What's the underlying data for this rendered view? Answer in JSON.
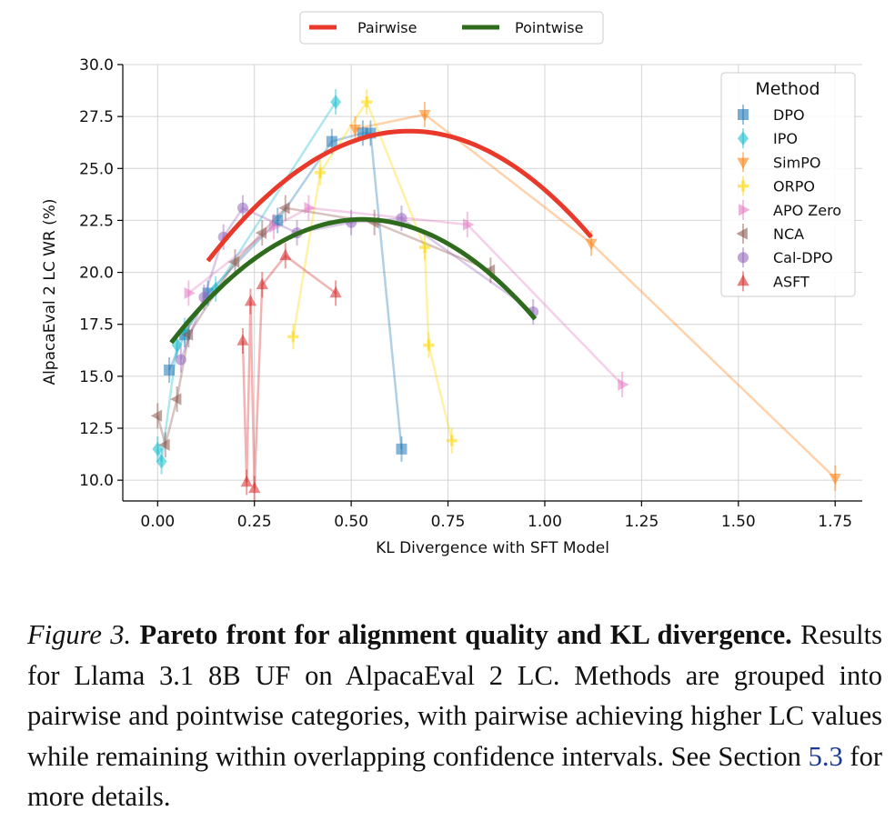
{
  "chart_data": {
    "type": "scatter",
    "xlabel": "KL Divergence with SFT Model",
    "ylabel": "AlpacaEval 2 LC WR (%)",
    "xlim": [
      -0.09,
      1.82
    ],
    "ylim": [
      9.0,
      30.0
    ],
    "xticks": [
      0.0,
      0.25,
      0.5,
      0.75,
      1.0,
      1.25,
      1.5,
      1.75
    ],
    "xtick_labels": [
      "0.00",
      "0.25",
      "0.50",
      "0.75",
      "1.00",
      "1.25",
      "1.50",
      "1.75"
    ],
    "yticks": [
      10.0,
      12.5,
      15.0,
      17.5,
      20.0,
      22.5,
      25.0,
      27.5,
      30.0
    ],
    "ytick_labels": [
      "10.0",
      "12.5",
      "15.0",
      "17.5",
      "20.0",
      "22.5",
      "25.0",
      "27.5",
      "30.0"
    ],
    "grid": true,
    "legend_title": "Method",
    "legend_position": "top-right",
    "top_legend_position": "top-center",
    "series": [
      {
        "name": "DPO",
        "color": "#1f77b4",
        "marker": "square",
        "points": [
          [
            0.03,
            15.3
          ],
          [
            0.07,
            17.0
          ],
          [
            0.13,
            19.0
          ],
          [
            0.31,
            22.5
          ],
          [
            0.45,
            26.3
          ],
          [
            0.53,
            26.7
          ],
          [
            0.55,
            26.7
          ],
          [
            0.63,
            11.5
          ]
        ]
      },
      {
        "name": "IPO",
        "color": "#17becf",
        "marker": "diamond",
        "points": [
          [
            0.0,
            11.5
          ],
          [
            0.01,
            10.9
          ],
          [
            0.05,
            16.5
          ],
          [
            0.07,
            17.2
          ],
          [
            0.15,
            19.2
          ],
          [
            0.46,
            28.2
          ]
        ]
      },
      {
        "name": "SimPO",
        "color": "#ff7f0e",
        "marker": "triangle-down",
        "points": [
          [
            0.51,
            26.9
          ],
          [
            0.69,
            27.6
          ],
          [
            1.12,
            21.4
          ],
          [
            1.75,
            10.1
          ]
        ]
      },
      {
        "name": "ORPO",
        "color": "#ffd700",
        "marker": "plus",
        "points": [
          [
            0.35,
            16.9
          ],
          [
            0.42,
            24.8
          ],
          [
            0.54,
            28.2
          ],
          [
            0.69,
            21.2
          ],
          [
            0.7,
            16.5
          ],
          [
            0.76,
            11.9
          ]
        ]
      },
      {
        "name": "APO Zero",
        "color": "#e377c2",
        "marker": "triangle-right",
        "points": [
          [
            0.08,
            19.0
          ],
          [
            0.3,
            22.2
          ],
          [
            0.39,
            23.1
          ],
          [
            0.8,
            22.3
          ],
          [
            1.2,
            14.6
          ]
        ]
      },
      {
        "name": "NCA",
        "color": "#8c564b",
        "marker": "triangle-left",
        "points": [
          [
            0.0,
            13.1
          ],
          [
            0.02,
            11.7
          ],
          [
            0.05,
            13.9
          ],
          [
            0.08,
            17.0
          ],
          [
            0.2,
            20.5
          ],
          [
            0.27,
            21.9
          ],
          [
            0.33,
            23.1
          ],
          [
            0.56,
            22.4
          ],
          [
            0.86,
            20.1
          ]
        ]
      },
      {
        "name": "Cal-DPO",
        "color": "#9467bd",
        "marker": "circle",
        "points": [
          [
            0.06,
            15.8
          ],
          [
            0.12,
            18.8
          ],
          [
            0.17,
            21.7
          ],
          [
            0.22,
            23.1
          ],
          [
            0.36,
            21.9
          ],
          [
            0.5,
            22.4
          ],
          [
            0.63,
            22.6
          ],
          [
            0.97,
            18.1
          ]
        ]
      },
      {
        "name": "ASFT",
        "color": "#d62728",
        "marker": "triangle-up",
        "points": [
          [
            0.22,
            16.7
          ],
          [
            0.23,
            9.9
          ],
          [
            0.24,
            18.6
          ],
          [
            0.25,
            9.6
          ],
          [
            0.27,
            19.4
          ],
          [
            0.33,
            20.8
          ],
          [
            0.46,
            19.0
          ]
        ]
      }
    ],
    "fits": [
      {
        "name": "Pairwise",
        "color": "#e8392a",
        "x_range": [
          0.13,
          1.12
        ],
        "vertex_x": 0.65,
        "vertex_y": 26.8,
        "a": -23.1
      },
      {
        "name": "Pointwise",
        "color": "#2e6b1d",
        "x_range": [
          0.035,
          0.975
        ],
        "vertex_x": 0.53,
        "vertex_y": 22.55,
        "a": -24.2
      }
    ]
  },
  "caption": {
    "figure_label": "Figure 3.",
    "bold_title": "Pareto front for alignment quality and KL divergence.",
    "body_before_ref": "Results for Llama 3.1 8B UF on AlpacaEval 2 LC. Methods are grouped into pairwise and pointwise categories, with pairwise achieving higher LC values while remaining within overlapping confidence intervals. See Section",
    "ref": "5.3",
    "body_after_ref": "for more details."
  }
}
